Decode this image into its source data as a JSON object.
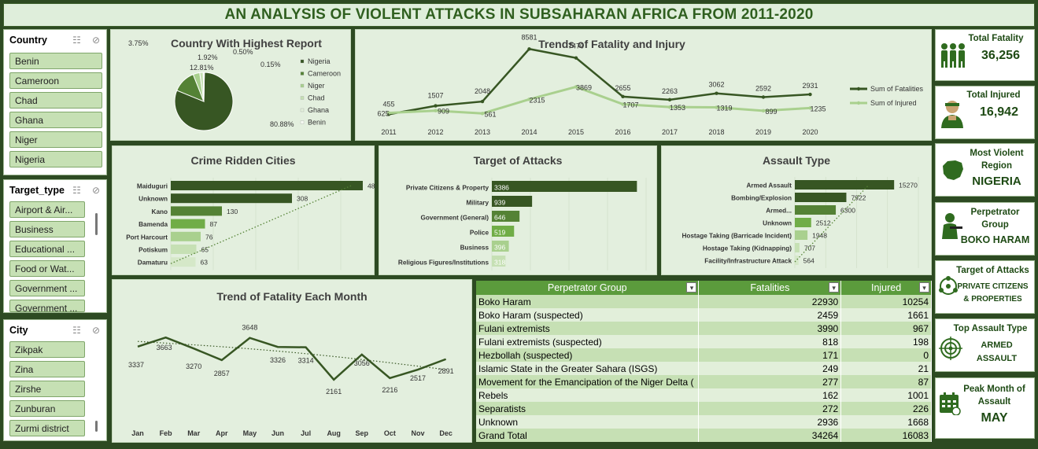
{
  "title": "AN ANALYSIS OF VIOLENT ATTACKS IN SUBSAHARAN AFRICA FROM 2011-2020",
  "slicers": {
    "country": {
      "label": "Country",
      "items": [
        "Benin",
        "Cameroon",
        "Chad",
        "Ghana",
        "Niger",
        "Nigeria"
      ]
    },
    "target_type": {
      "label": "Target_type",
      "items": [
        "Airport & Air...",
        "Business",
        "Educational ...",
        "Food or Wat...",
        "Government ...",
        "Government ..."
      ]
    },
    "city": {
      "label": "City",
      "items": [
        "Zikpak",
        "Zina",
        "Zirshe",
        "Zunburan",
        "Zurmi district"
      ]
    }
  },
  "kpis": {
    "total_fatality": {
      "label": "Total Fatality",
      "value": "36,256",
      "icon": "group-people-icon"
    },
    "total_injured": {
      "label": "Total Injured",
      "value": "16,942",
      "icon": "injured-person-icon"
    },
    "most_violent": {
      "label_1": "Most Violent",
      "label_2": "Region",
      "value": "NIGERIA",
      "icon": "nigeria-map-icon"
    },
    "perpetrator": {
      "label_1": "Perpetrator",
      "label_2": "Group",
      "value": "BOKO HARAM",
      "icon": "gunman-icon"
    },
    "target": {
      "label": "Target of Attacks",
      "value_1": "PRIVATE CITIZENS",
      "value_2": "& PROPERTIES",
      "icon": "people-network-icon"
    },
    "assault": {
      "label": "Top Assault Type",
      "value_1": "ARMED",
      "value_2": "ASSAULT",
      "icon": "target-crosshair-icon"
    },
    "peak_month": {
      "label_1": "Peak Month of",
      "label_2": "Assault",
      "value": "MAY",
      "icon": "calendar-icon"
    }
  },
  "colors": {
    "dark_green": "#375623",
    "mid_green": "#548235",
    "light_green": "#a9d08e",
    "pale_green": "#c6e0b4",
    "accent": "#70ad47"
  },
  "chart_data": [
    {
      "id": "pie",
      "type": "pie",
      "title": "Country With Highest Report",
      "labels": [
        "Nigeria",
        "Cameroon",
        "Niger",
        "Chad",
        "Ghana",
        "Benin"
      ],
      "values": [
        80.88,
        12.81,
        3.75,
        1.92,
        0.5,
        0.15
      ],
      "value_labels": [
        "80.88%",
        "12.81%",
        "3.75%",
        "1.92%",
        "0.50%",
        "0.15%"
      ],
      "colors": [
        "#375623",
        "#548235",
        "#a9d08e",
        "#c6e0b4",
        "#e2efda",
        "#f5faf2"
      ],
      "legend": "right"
    },
    {
      "id": "trend",
      "type": "line",
      "title": "Trends of Fatality and Injury",
      "categories": [
        "2011",
        "2012",
        "2013",
        "2014",
        "2015",
        "2016",
        "2017",
        "2018",
        "2019",
        "2020"
      ],
      "series": [
        {
          "name": "Sum of Fatalities",
          "values": [
            455,
            1507,
            2048,
            8581,
            7470,
            2655,
            2263,
            3062,
            2592,
            2931
          ],
          "color": "#375623"
        },
        {
          "name": "Sum of Injured",
          "values": [
            625,
            909,
            561,
            2315,
            3869,
            1707,
            1353,
            1319,
            899,
            1235
          ],
          "color": "#a9d08e"
        }
      ],
      "ylim": [
        0,
        9000
      ],
      "legend": "right"
    },
    {
      "id": "cities",
      "type": "bar",
      "orientation": "horizontal",
      "title": "Crime Ridden Cities",
      "categories": [
        "Maiduguri",
        "Unknown",
        "Kano",
        "Bamenda",
        "Port Harcourt",
        "Potiskum",
        "Damaturu"
      ],
      "values": [
        488,
        308,
        130,
        87,
        76,
        65,
        63
      ],
      "xlim": [
        0,
        540
      ],
      "trendline": true
    },
    {
      "id": "targets",
      "type": "bar",
      "orientation": "horizontal",
      "title": "Target of Attacks",
      "categories": [
        "Private Citizens & Property",
        "Military",
        "Government (General)",
        "Police",
        "Business",
        "Religious Figures/Institutions"
      ],
      "values": [
        3386,
        939,
        646,
        519,
        396,
        318
      ],
      "xlim": [
        0,
        3600
      ]
    },
    {
      "id": "assault",
      "type": "bar",
      "orientation": "horizontal",
      "title": "Assault Type",
      "categories": [
        "Armed Assault",
        "Bombing/Explosion",
        "Armed...",
        "Unknown",
        "Hostage Taking (Barricade Incident)",
        "Hostage Taking (Kidnapping)",
        "Facility/Infrastructure Attack"
      ],
      "values": [
        15270,
        7922,
        6300,
        2512,
        1948,
        707,
        564
      ],
      "xlim": [
        0,
        19000
      ],
      "trendline": true
    },
    {
      "id": "monthly",
      "type": "line",
      "title": "Trend of Fatality Each Month",
      "categories": [
        "Jan",
        "Feb",
        "Mar",
        "Apr",
        "May",
        "Jun",
        "Jul",
        "Aug",
        "Sep",
        "Oct",
        "Nov",
        "Dec"
      ],
      "values": [
        3337,
        3663,
        3270,
        2857,
        3648,
        3326,
        3314,
        2161,
        3056,
        2216,
        2517,
        2891
      ],
      "ylim": [
        1400,
        4200
      ],
      "trendline": true
    },
    {
      "id": "perp_table",
      "type": "table",
      "columns": [
        "Perpetrator Group",
        "Fatalities",
        "Injured"
      ],
      "rows": [
        [
          "Boko Haram",
          22930,
          10254
        ],
        [
          "Boko Haram (suspected)",
          2459,
          1661
        ],
        [
          "Fulani extremists",
          3990,
          967
        ],
        [
          "Fulani extremists (suspected)",
          818,
          198
        ],
        [
          "Hezbollah (suspected)",
          171,
          0
        ],
        [
          "Islamic State in the Greater Sahara (ISGS)",
          249,
          21
        ],
        [
          "Movement for the Emancipation of the Niger Delta (",
          277,
          87
        ],
        [
          "Rebels",
          162,
          1001
        ],
        [
          "Separatists",
          272,
          226
        ],
        [
          "Unknown",
          2936,
          1668
        ],
        [
          "Grand Total",
          34264,
          16083
        ]
      ]
    }
  ]
}
